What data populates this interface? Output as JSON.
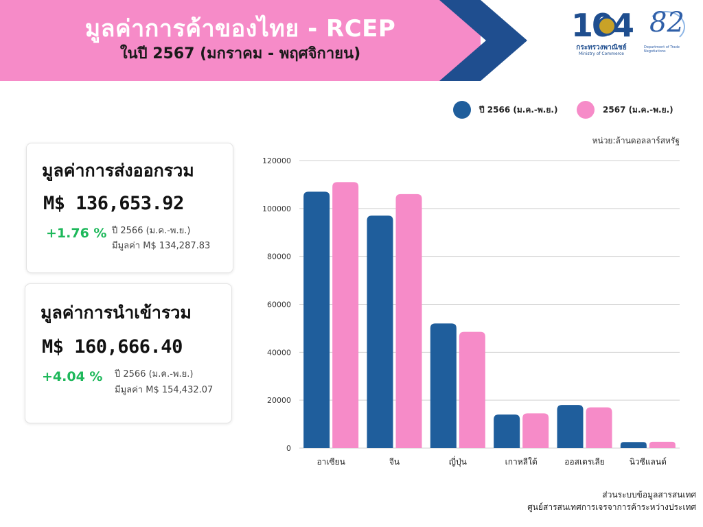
{
  "header": {
    "title": "มูลค่าการค้าของไทย - RCEP",
    "subtitle": "ในปี 2567 (มกราคม - พฤศจิกายน)"
  },
  "logos": {
    "moc": {
      "number": "104",
      "name_th": "กระทรวงพาณิชย์",
      "name_en": "Ministry of Commerce"
    },
    "dtn": {
      "number": "82",
      "label": "Department of Trade Negotiations"
    }
  },
  "legend": [
    {
      "label": "ปี 2566 (ม.ค.-พ.ย.)",
      "color": "#1f5e9c"
    },
    {
      "label": "2567 (ม.ค.-พ.ย.)",
      "color": "#f68bc8"
    }
  ],
  "unit": "หน่วย:ล้านดอลลาร์สหรัฐ",
  "cards": {
    "export": {
      "title": "มูลค่าการส่งออกรวม",
      "value": "M$ 136,653.92",
      "pct": "+1.76 %",
      "prev_period": "ปี 2566 (ม.ค.-พ.ย.)",
      "prev_value": "มีมูลค่า M$ 134,287.83"
    },
    "import": {
      "title": "มูลค่าการนำเข้ารวม",
      "value": "M$ 160,666.40",
      "pct": "+4.04 %",
      "prev_period": "ปี 2566 (ม.ค.-พ.ย.)",
      "prev_value": "มีมูลค่า M$ 154,432.07"
    }
  },
  "colors": {
    "banner_pink": "#f68bc8",
    "banner_navy": "#1f4e8f",
    "series_2566": "#1f5e9c",
    "series_2567": "#f68bc8",
    "positive_green": "#1eb85b"
  },
  "chart_data": {
    "type": "bar",
    "categories": [
      "อาเซียน",
      "จีน",
      "ญี่ปุ่น",
      "เกาหลีใต้",
      "ออสเตรเลีย",
      "นิวซีแลนด์"
    ],
    "series": [
      {
        "name": "ปี 2566 (ม.ค.-พ.ย.)",
        "values": [
          107000,
          97000,
          52000,
          14000,
          18000,
          2500
        ]
      },
      {
        "name": "2567 (ม.ค.-พ.ย.)",
        "values": [
          111000,
          106000,
          48500,
          14500,
          17000,
          2600
        ]
      }
    ],
    "yticks": [
      0,
      20000,
      40000,
      60000,
      80000,
      100000,
      120000
    ],
    "ylim": [
      0,
      120000
    ],
    "grid": true,
    "legend_position": "top-right"
  },
  "footer": {
    "line1": "ส่วนระบบข้อมูลสารสนเทศ",
    "line2": "ศูนย์สารสนเทศการเจรจาการค้าระหว่างประเทศ"
  }
}
